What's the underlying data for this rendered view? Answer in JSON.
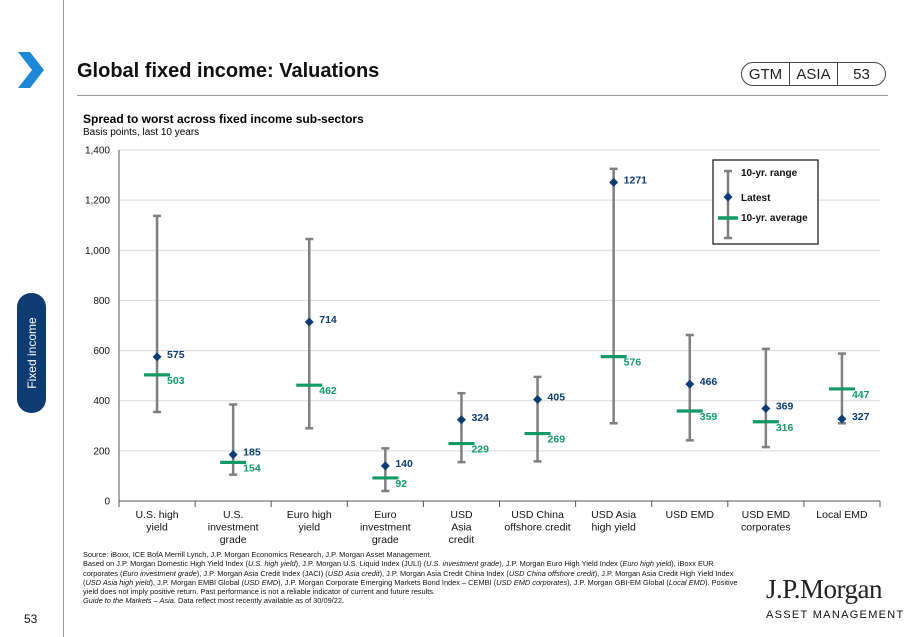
{
  "header": {
    "title": "Global fixed income: Valuations",
    "tag": [
      "GTM",
      "ASIA",
      "53"
    ],
    "side_label": "Fixed income"
  },
  "chart_header": {
    "subtitle": "Spread to worst across fixed income sub-sectors",
    "units": "Basis points, last 10 years"
  },
  "chart_data": {
    "type": "range",
    "title": "Spread to worst across fixed income sub-sectors",
    "ylabel": "Basis points, last 10 years",
    "ylim": [
      0,
      1400
    ],
    "yticks": [
      "0",
      "200",
      "400",
      "600",
      "800",
      "1,000",
      "1,200",
      "1,400"
    ],
    "categories": [
      [
        "U.S. high",
        "yield"
      ],
      [
        "U.S.",
        "investment",
        "grade"
      ],
      [
        "Euro high",
        "yield"
      ],
      [
        "Euro",
        "investment",
        "grade"
      ],
      [
        "USD",
        "Asia",
        "credit"
      ],
      [
        "USD China",
        "offshore credit"
      ],
      [
        "USD Asia",
        "high yield"
      ],
      [
        "USD EMD"
      ],
      [
        "USD EMD",
        "corporates"
      ],
      [
        "Local EMD"
      ]
    ],
    "range_low": [
      355,
      105,
      290,
      40,
      155,
      158,
      310,
      242,
      215,
      310
    ],
    "range_high": [
      1137,
      385,
      1045,
      210,
      430,
      495,
      1325,
      662,
      607,
      588
    ],
    "latest": [
      575,
      185,
      714,
      140,
      324,
      405,
      1271,
      466,
      369,
      327
    ],
    "average": [
      503,
      154,
      462,
      92,
      229,
      269,
      576,
      359,
      316,
      447
    ],
    "legend": {
      "range": "10-yr. range",
      "latest": "Latest",
      "average": "10-yr. average",
      "position": "top-right"
    },
    "colors": {
      "range": "#7f7f7f",
      "latest": "#0b3d75",
      "average": "#119966"
    }
  },
  "footer": {
    "source": "Source: iBoxx, ICE BofA Merrill Lynch, J.P. Morgan Economics Research, J.P. Morgan Asset Management.",
    "notes_1": "Based on J.P. Morgan Domestic High Yield Index (",
    "i1": "U.S. high yield",
    "notes_2": "), J.P. Morgan U.S. Liquid Index (JULI) (",
    "i2": "U.S. investment grade",
    "notes_3": "), J.P. Morgan Euro High Yield Index (",
    "i3": "Euro high yield",
    "notes_4": "), iBoxx EUR corporates (",
    "i4": "Euro investment grade",
    "notes_5": "), J.P. Morgan Asia Credit Index (JACI) (",
    "i5": "USD Asia credit",
    "notes_6": "), J.P. Morgan Asia Credit China Index (",
    "i6": "USD China offshore credit",
    "notes_7": "), J.P. Morgan Asia Credit High Yield Index (",
    "i7": "USD Asia high yield",
    "notes_8": "), J.P. Morgan EMBI Global (",
    "i8": "USD EMD",
    "notes_9": "), J.P. Morgan Corporate Emerging Markets Bond Index – CEMBI (",
    "i9": "USD EMD corporates",
    "notes_10": "), J.P. Morgan GBI-EM Global (",
    "i10": "Local EMD",
    "notes_11": "). Positive yield does not imply positive return. Past performance is not a reliable indicator of current and future results.",
    "guide_italic": "Guide to the Markets – Asia.",
    "guide_rest": " Data reflect most recently available as of 30/09/22."
  },
  "page_number": "53",
  "logo": {
    "line1": "J.P.Morgan",
    "line2": "ASSET MANAGEMENT"
  }
}
